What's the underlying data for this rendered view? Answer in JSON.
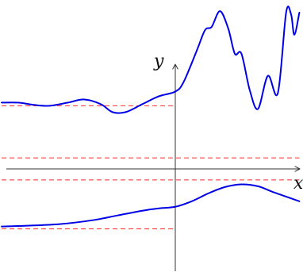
{
  "chart_data": {
    "type": "line",
    "xlabel": "x",
    "ylabel": "y",
    "xlim": [
      -10.5,
      7.5
    ],
    "ylim": [
      -6.2,
      10.3
    ],
    "grid": false,
    "colors": {
      "curve": "#0000e6",
      "asymptote": "#ff2a2a",
      "axis": "#333333"
    },
    "horizontal_reference_lines": [
      {
        "y": 4.0,
        "x_range": [
          -10.5,
          0
        ]
      },
      {
        "y": 0.7,
        "x_range": [
          -10.5,
          7.5
        ]
      },
      {
        "y": -0.7,
        "x_range": [
          -10.5,
          7.5
        ]
      },
      {
        "y": -3.8,
        "x_range": [
          -10.5,
          0
        ]
      }
    ],
    "series": [
      {
        "points": [
          [
            -10.5,
            4.2
          ],
          [
            -9.5,
            4.2
          ],
          [
            -8.5,
            4.05
          ],
          [
            -7.6,
            4.0
          ],
          [
            -6.5,
            4.2
          ],
          [
            -5.5,
            4.4
          ],
          [
            -4.5,
            4.1
          ],
          [
            -3.8,
            3.6
          ],
          [
            -3.0,
            3.6
          ],
          [
            -2.0,
            4.1
          ],
          [
            -1.0,
            4.6
          ],
          [
            0.0,
            4.9
          ],
          [
            0.5,
            5.5
          ],
          [
            1.3,
            7.5
          ],
          [
            1.8,
            8.8
          ],
          [
            2.2,
            9.0
          ],
          [
            2.7,
            10.0
          ],
          [
            3.2,
            8.9
          ],
          [
            3.6,
            7.3
          ],
          [
            4.0,
            7.3
          ],
          [
            4.5,
            5.0
          ],
          [
            5.0,
            3.8
          ],
          [
            5.6,
            5.9
          ],
          [
            6.2,
            4.8
          ],
          [
            6.7,
            9.9
          ],
          [
            7.0,
            9.8
          ],
          [
            7.2,
            8.5
          ],
          [
            7.5,
            9.9
          ]
        ]
      },
      {
        "points": [
          [
            -10.5,
            -3.65
          ],
          [
            -9.0,
            -3.6
          ],
          [
            -7.0,
            -3.5
          ],
          [
            -5.0,
            -3.25
          ],
          [
            -3.5,
            -2.95
          ],
          [
            -2.0,
            -2.65
          ],
          [
            -1.0,
            -2.5
          ],
          [
            0.0,
            -2.4
          ],
          [
            1.0,
            -2.05
          ],
          [
            2.0,
            -1.55
          ],
          [
            3.0,
            -1.15
          ],
          [
            4.0,
            -0.98
          ],
          [
            5.0,
            -1.1
          ],
          [
            6.0,
            -1.5
          ],
          [
            7.5,
            -2.05
          ]
        ]
      }
    ]
  }
}
